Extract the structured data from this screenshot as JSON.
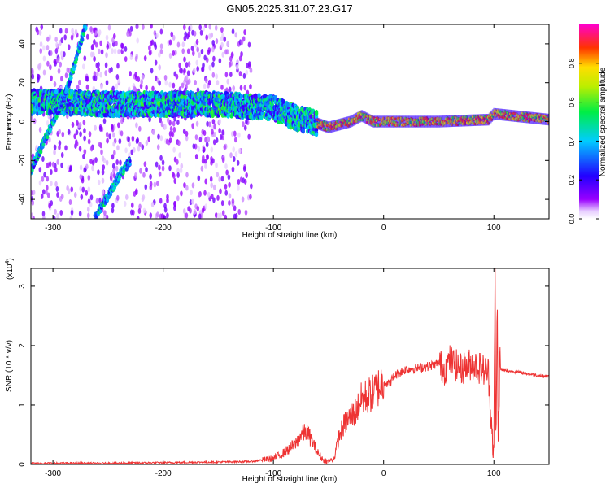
{
  "figure": {
    "title": "GN05.2025.311.07.23.G17"
  },
  "chart_data": [
    {
      "type": "heatmap",
      "xlabel": "Height of straight line (km)",
      "ylabel": "Frequency (Hz)",
      "xlim": [
        -320,
        150
      ],
      "ylim": [
        -50,
        50
      ],
      "xticks": [
        -300,
        -200,
        -100,
        0,
        100
      ],
      "yticks": [
        -40,
        -20,
        0,
        20,
        40
      ],
      "colorbar": {
        "label": "Normalized spectral amplitude",
        "ticks": [
          "0.0",
          "0.2",
          "0.4",
          "0.6",
          "0.8"
        ],
        "range": [
          0,
          1
        ],
        "colormap": "rainbow (violet-blue-cyan-green-yellow-red-magenta)"
      },
      "features": [
        {
          "name": "main carrier",
          "x": [
            -300,
            -250,
            -200,
            -150,
            -100,
            -80,
            -60,
            -50,
            -30,
            -20,
            -10,
            0,
            50,
            95,
            100,
            150
          ],
          "y": [
            10,
            9,
            9,
            9,
            7,
            2,
            -1,
            -3,
            0,
            3,
            0,
            0,
            0,
            1,
            4,
            1
          ]
        },
        {
          "name": "rising streak",
          "x": [
            -320,
            -300,
            -290,
            -280,
            -270
          ],
          "y": [
            -25,
            0,
            12,
            30,
            50
          ]
        },
        {
          "name": "lower streak",
          "x": [
            -262,
            -250,
            -240,
            -230
          ],
          "y": [
            -50,
            -38,
            -28,
            -20
          ]
        }
      ]
    },
    {
      "type": "line",
      "xlabel": "Height of straight line (km)",
      "ylabel": "SNR (10 * v/v)",
      "scale_label": "(x10",
      "scale_exp": "4",
      "xlim": [
        -320,
        150
      ],
      "ylim": [
        0,
        3.3
      ],
      "xticks": [
        -300,
        -200,
        -100,
        0,
        100
      ],
      "yticks": [
        0,
        1,
        2,
        3
      ],
      "color": "#ee3333",
      "series": [
        {
          "x": [
            -320,
            -300,
            -250,
            -200,
            -150,
            -120,
            -100,
            -90,
            -80,
            -75,
            -70,
            -65,
            -60,
            -55,
            -50,
            -45,
            -40,
            -35,
            -30,
            -25,
            -20,
            -15,
            -10,
            -5,
            0,
            5,
            10,
            15,
            20,
            30,
            40,
            50,
            55,
            60,
            70,
            80,
            90,
            95,
            100,
            101,
            102,
            103,
            104,
            105,
            110,
            120,
            130,
            140,
            150
          ],
          "y": [
            0.02,
            0.02,
            0.02,
            0.03,
            0.04,
            0.05,
            0.1,
            0.2,
            0.35,
            0.5,
            0.55,
            0.4,
            0.2,
            0.08,
            0.05,
            0.1,
            0.5,
            0.7,
            0.8,
            0.9,
            1.1,
            1.15,
            1.2,
            1.3,
            1.4,
            1.35,
            1.5,
            1.55,
            1.6,
            1.62,
            1.65,
            1.7,
            1.6,
            1.75,
            1.6,
            1.7,
            1.6,
            1.55,
            0.1,
            3.3,
            0.1,
            2.8,
            0.3,
            1.6,
            1.58,
            1.56,
            1.53,
            1.5,
            1.48
          ]
        }
      ]
    }
  ]
}
